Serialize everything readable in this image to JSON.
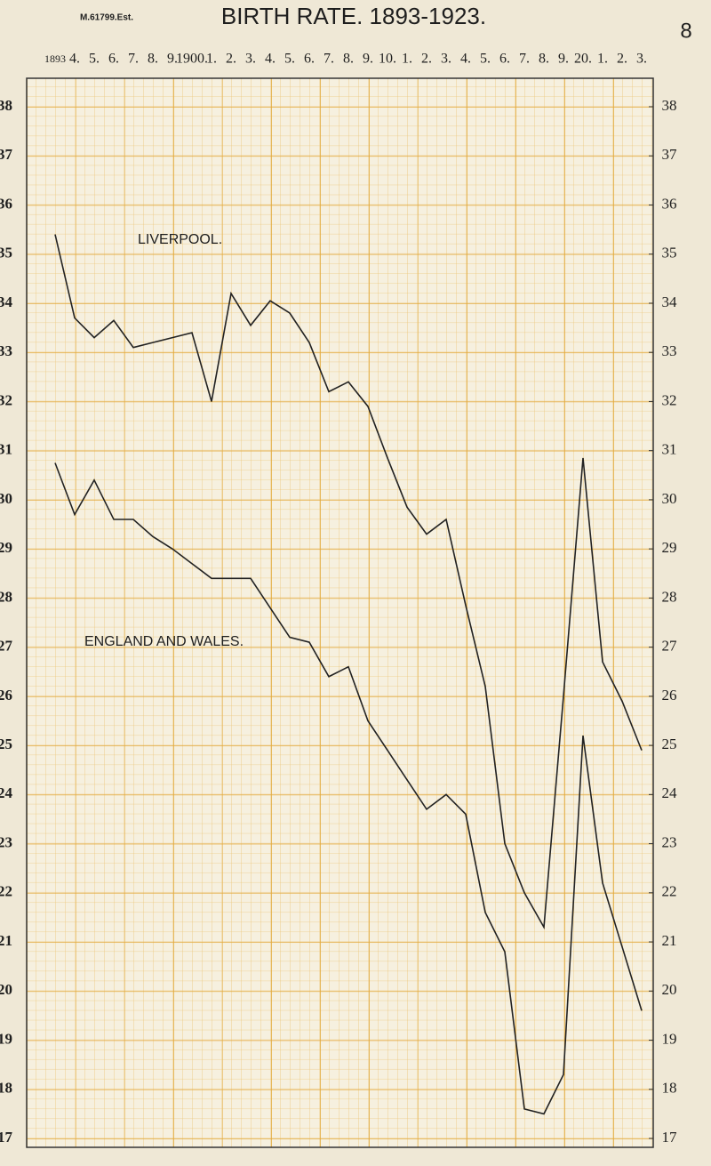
{
  "chart_data": {
    "type": "line",
    "stamp": "M.61799.Est.",
    "title": "BIRTH RATE. 1893-1923.",
    "page_number": "8",
    "categories": [
      "1893",
      "4.",
      "5.",
      "6.",
      "7.",
      "8.",
      "9.",
      "1900.",
      "1.",
      "2.",
      "3.",
      "4.",
      "5.",
      "6.",
      "7.",
      "8.",
      "9.",
      "10.",
      "1.",
      "2.",
      "3.",
      "4.",
      "5.",
      "6.",
      "7.",
      "8.",
      "9.",
      "20.",
      "1.",
      "2.",
      "3."
    ],
    "series": [
      {
        "name": "LIVERPOOL.",
        "color": "#222222",
        "values": [
          35.4,
          33.7,
          33.3,
          33.65,
          33.1,
          33.2,
          33.3,
          33.4,
          32.0,
          34.2,
          33.55,
          34.05,
          33.8,
          33.2,
          32.2,
          32.4,
          31.9,
          30.85,
          29.85,
          29.3,
          29.6,
          27.85,
          26.2,
          23.0,
          22.0,
          21.3,
          26.0,
          30.85,
          26.7,
          25.9,
          24.9
        ]
      },
      {
        "name": "ENGLAND AND WALES.",
        "color": "#222222",
        "values": [
          30.75,
          29.7,
          30.4,
          29.6,
          29.6,
          29.25,
          29.0,
          28.7,
          28.4,
          28.4,
          28.4,
          27.8,
          27.2,
          27.1,
          26.4,
          26.6,
          25.5,
          24.9,
          24.3,
          23.7,
          24.0,
          23.6,
          21.6,
          20.8,
          17.6,
          17.5,
          18.3,
          25.2,
          22.2,
          20.9,
          19.6
        ]
      }
    ],
    "ylim": [
      17,
      38
    ],
    "yticks": [
      17,
      18,
      19,
      20,
      21,
      22,
      23,
      24,
      25,
      26,
      27,
      28,
      29,
      30,
      31,
      32,
      33,
      34,
      35,
      36,
      37,
      38
    ],
    "grid": true
  }
}
